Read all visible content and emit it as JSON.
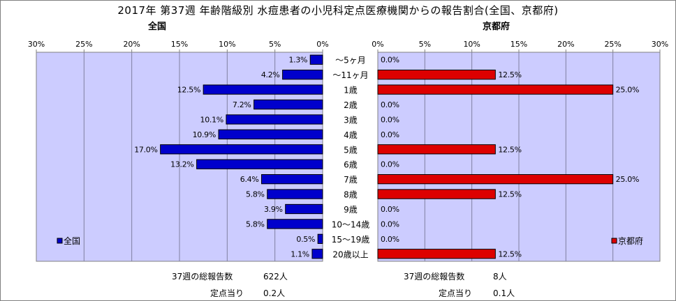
{
  "title": "2017年 第37週 年齢階級別 水痘患者の小児科定点医療機関からの報告割合(全国、京都府)",
  "categories": [
    "～5ヶ月",
    "～11ヶ月",
    "1歳",
    "2歳",
    "3歳",
    "4歳",
    "5歳",
    "6歳",
    "7歳",
    "8歳",
    "9歳",
    "10～14歳",
    "15～19歳",
    "20歳以上"
  ],
  "chart_data": [
    {
      "type": "bar",
      "orientation": "horizontal",
      "direction": "right-to-left",
      "title": "全国",
      "series": [
        {
          "name": "全国",
          "values": [
            1.3,
            4.2,
            12.5,
            7.2,
            10.1,
            10.9,
            17.0,
            13.2,
            6.4,
            5.8,
            3.9,
            5.8,
            0.5,
            1.1
          ]
        }
      ],
      "xlim": [
        0,
        30
      ],
      "ticks": [
        "30%",
        "25%",
        "20%",
        "15%",
        "10%",
        "5%",
        "0%"
      ],
      "value_labels": [
        "1.3%",
        "4.2%",
        "12.5%",
        "7.2%",
        "10.1%",
        "10.9%",
        "17.0%",
        "13.2%",
        "6.4%",
        "5.8%",
        "3.9%",
        "5.8%",
        "0.5%",
        "1.1%"
      ],
      "legend": "bottom-left",
      "color": "#0000cc",
      "plot_background": "#ccccff",
      "grid": true
    },
    {
      "type": "bar",
      "orientation": "horizontal",
      "title": "京都府",
      "series": [
        {
          "name": "京都府",
          "values": [
            0.0,
            12.5,
            25.0,
            0.0,
            0.0,
            0.0,
            12.5,
            0.0,
            25.0,
            12.5,
            0.0,
            0.0,
            0.0,
            12.5
          ]
        }
      ],
      "xlim": [
        0,
        30
      ],
      "ticks": [
        "0%",
        "5%",
        "10%",
        "15%",
        "20%",
        "25%",
        "30%"
      ],
      "value_labels": [
        "0.0%",
        "12.5%",
        "25.0%",
        "0.0%",
        "0.0%",
        "0.0%",
        "12.5%",
        "0.0%",
        "25.0%",
        "12.5%",
        "0.0%",
        "0.0%",
        "0.0%",
        "12.5%"
      ],
      "legend": "bottom-right",
      "color": "#dd0000",
      "plot_background": "#ccccff",
      "grid": true
    }
  ],
  "stats": {
    "national": {
      "total_label": "37週の総報告数",
      "total_value": "622人",
      "per_label": "定点当り",
      "per_value": "0.2人"
    },
    "kyoto": {
      "total_label": "37週の総報告数",
      "total_value": "8人",
      "per_label": "定点当り",
      "per_value": "0.1人"
    }
  }
}
